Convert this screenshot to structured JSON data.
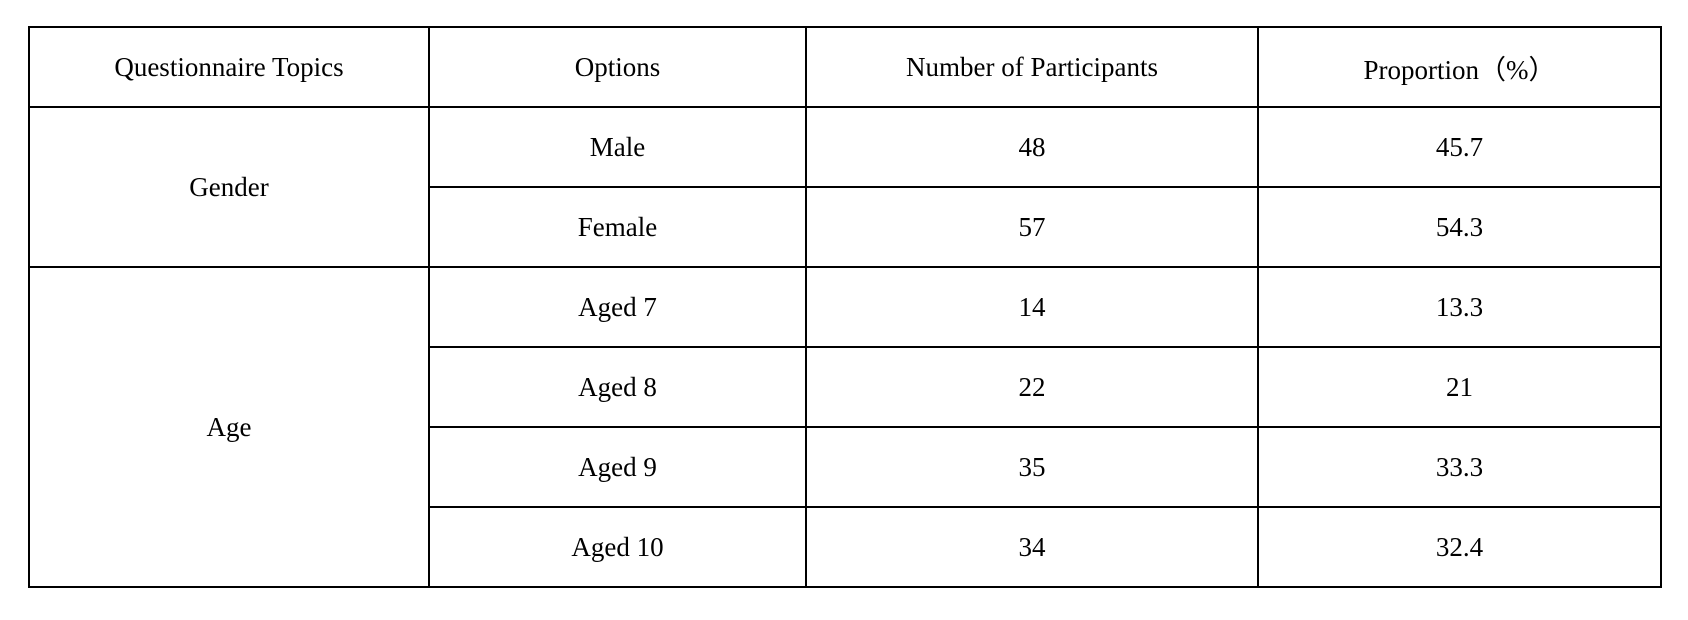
{
  "table": {
    "headers": [
      "Questionnaire Topics",
      "Options",
      "Number of Participants",
      "Proportion（%）"
    ],
    "groups": [
      {
        "topic": "Gender",
        "rows": [
          {
            "option": "Male",
            "count": "48",
            "proportion": "45.7"
          },
          {
            "option": "Female",
            "count": "57",
            "proportion": "54.3"
          }
        ]
      },
      {
        "topic": "Age",
        "rows": [
          {
            "option": "Aged 7",
            "count": "14",
            "proportion": "13.3"
          },
          {
            "option": "Aged 8",
            "count": "22",
            "proportion": "21"
          },
          {
            "option": "Aged 9",
            "count": "35",
            "proportion": "33.3"
          },
          {
            "option": "Aged 10",
            "count": "34",
            "proportion": "32.4"
          }
        ]
      }
    ]
  }
}
